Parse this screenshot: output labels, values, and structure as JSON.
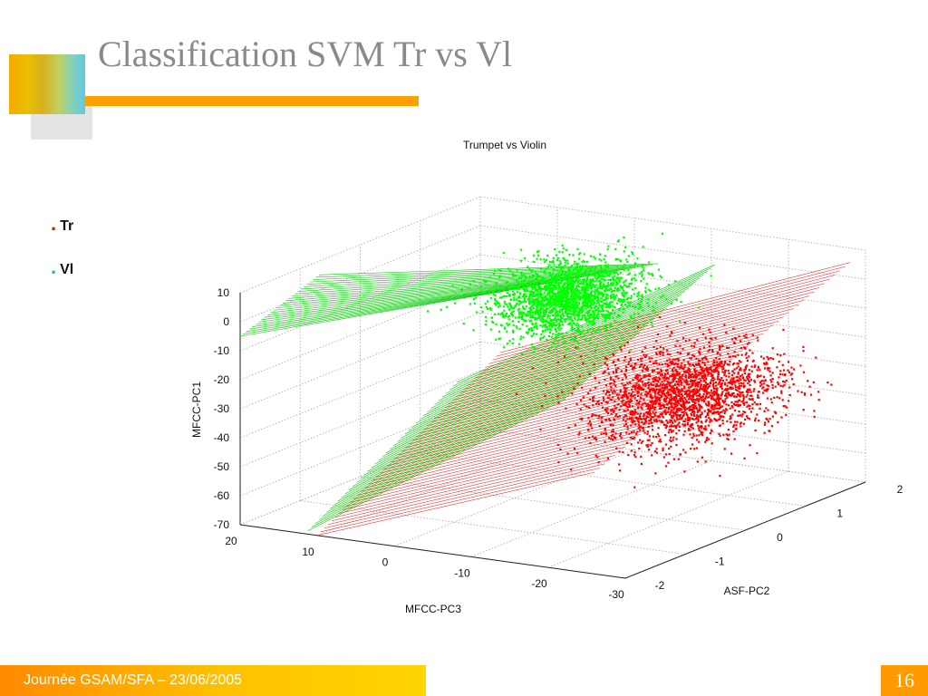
{
  "slide": {
    "title": "Classification SVM Tr vs Vl",
    "legend": [
      {
        "label": "Tr",
        "marker": ".",
        "color": "#ff0000"
      },
      {
        "label": "Vl",
        "marker": ".",
        "color": "#00c8a0"
      }
    ],
    "footer": "Journée GSAM/SFA – 23/06/2005",
    "page_number": "16",
    "accent_color": "#ffa000"
  },
  "chart_data": {
    "type": "scatter",
    "dimension": "3d",
    "title": "Trumpet vs Violin",
    "xlabel": "MFCC-PC3",
    "ylabel": "ASF-PC2",
    "zlabel": "MFCC-PC1",
    "xlim": [
      -30,
      20
    ],
    "ylim": [
      -2,
      2
    ],
    "zlim": [
      -70,
      10
    ],
    "x_ticks": [
      20,
      10,
      0,
      -10,
      -20,
      -30
    ],
    "y_ticks": [
      -2,
      -1,
      0,
      1,
      2
    ],
    "z_ticks": [
      10,
      0,
      -10,
      -20,
      -30,
      -40,
      -50,
      -60,
      -70
    ],
    "grid": true,
    "series": [
      {
        "name": "Tr",
        "color": "#ff0000",
        "center": [
          -18,
          0.5,
          -32
        ],
        "spread": [
          9,
          1.1,
          13
        ]
      },
      {
        "name": "Vl",
        "color": "#00ff00",
        "center": [
          0,
          0.9,
          -8
        ],
        "spread": [
          7,
          0.8,
          10
        ]
      }
    ],
    "decision_plane": {
      "colors": [
        "#00cc00",
        "#ff0000"
      ]
    }
  }
}
